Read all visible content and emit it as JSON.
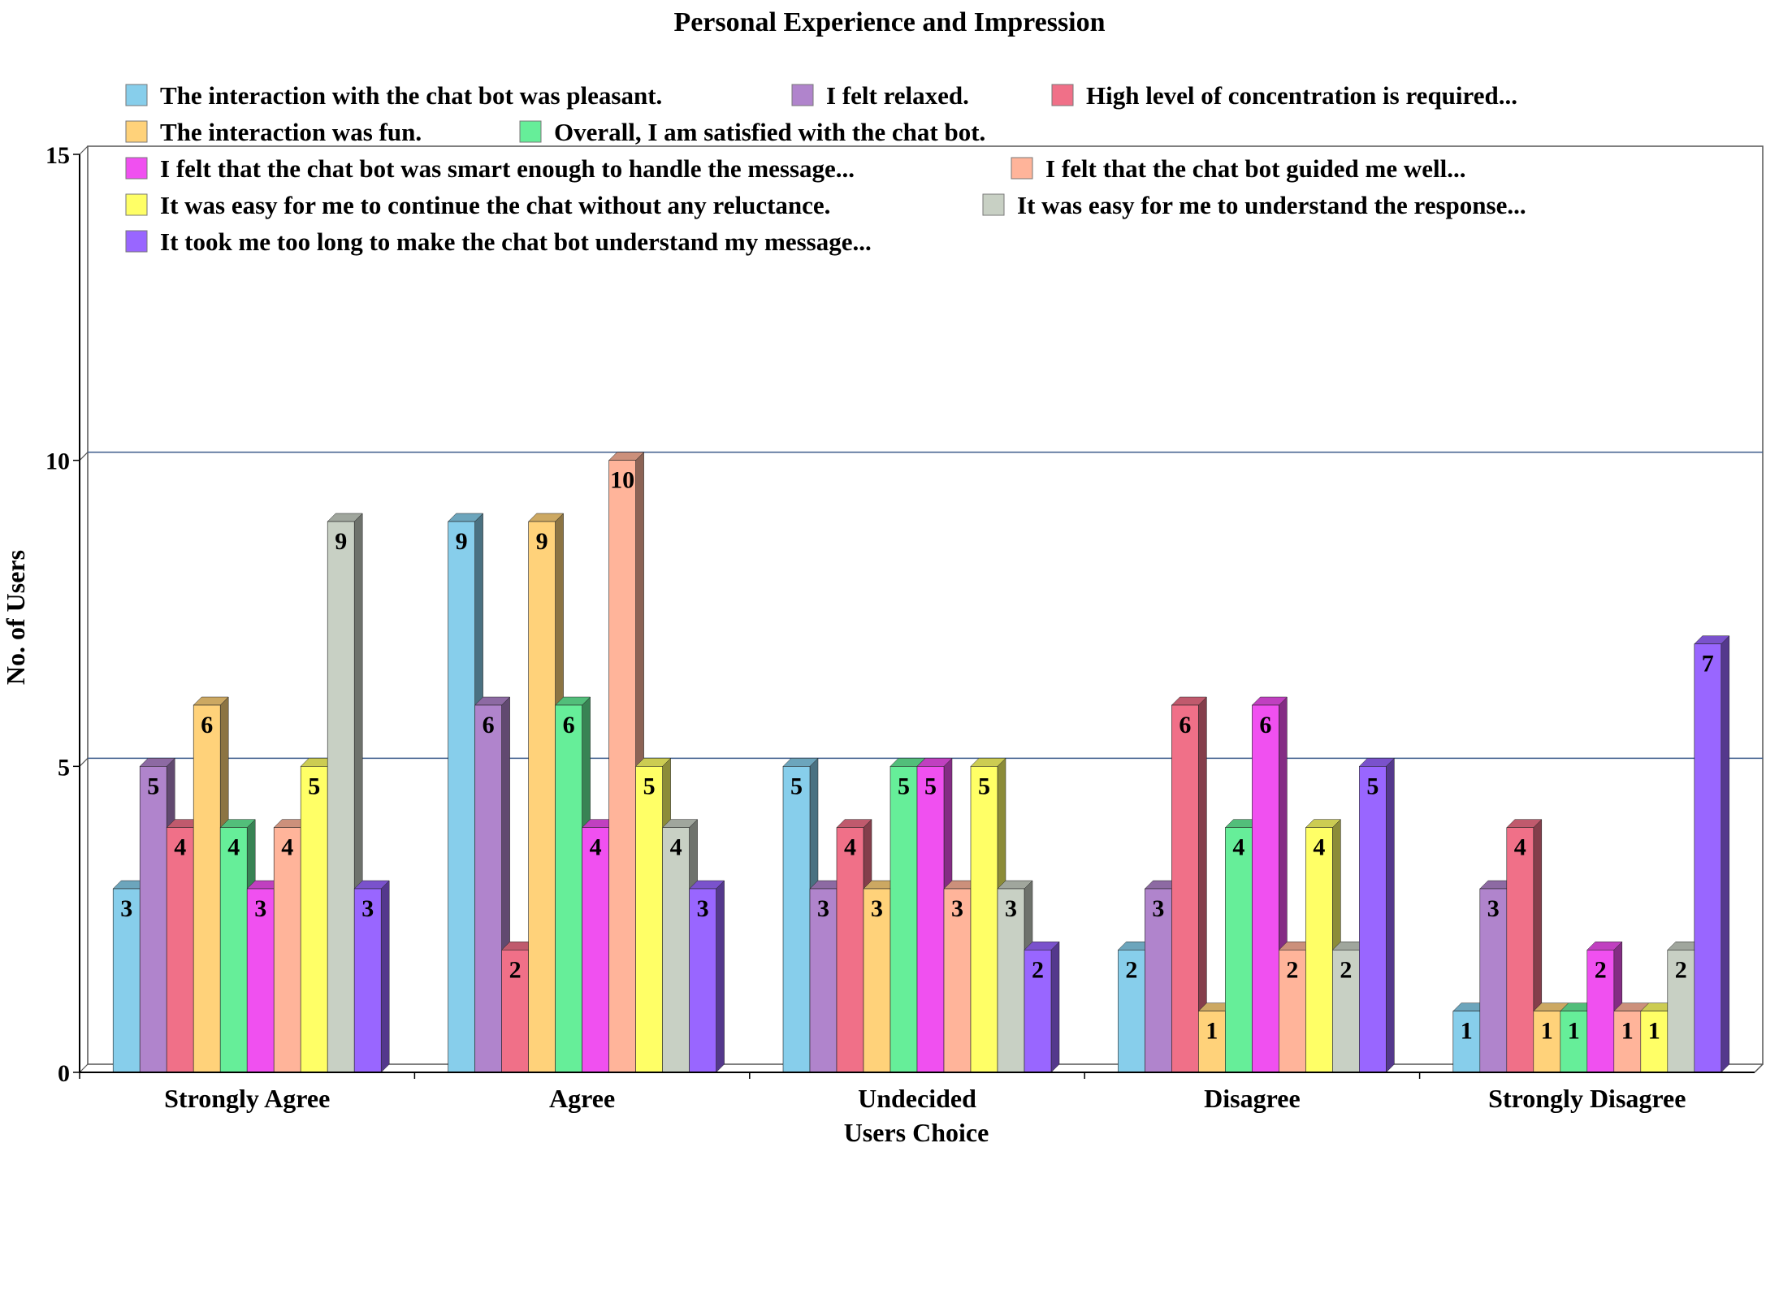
{
  "chart_data": {
    "type": "bar",
    "title": "Personal Experience and Impression",
    "xlabel": "Users Choice",
    "ylabel": "No. of  Users",
    "ylim": [
      0,
      15
    ],
    "yticks": [
      0,
      5,
      10,
      15
    ],
    "grid": true,
    "legend_position": "top-inside",
    "categories": [
      "Strongly Agree",
      "Agree",
      "Undecided",
      "Disagree",
      "Strongly Disagree"
    ],
    "series": [
      {
        "name": "The interaction with the chat bot was pleasant.",
        "color": "#87CEEB",
        "values": [
          3,
          9,
          5,
          2,
          1
        ]
      },
      {
        "name": "I felt relaxed.",
        "color": "#B084CC",
        "values": [
          5,
          6,
          3,
          3,
          3
        ]
      },
      {
        "name": "High level of concentration is required...",
        "color": "#F07088",
        "values": [
          4,
          2,
          4,
          6,
          4
        ]
      },
      {
        "name": "The interaction was fun.",
        "color": "#FFD27A",
        "values": [
          6,
          9,
          3,
          1,
          1
        ]
      },
      {
        "name": "Overall, I am satisfied with the chat bot.",
        "color": "#66EE99",
        "values": [
          4,
          6,
          5,
          4,
          1
        ]
      },
      {
        "name": "I felt that the chat bot was smart enough to handle the message...",
        "color": "#F050F0",
        "values": [
          3,
          4,
          5,
          6,
          2
        ]
      },
      {
        "name": "I felt that the chat bot guided me well...",
        "color": "#FFB49A",
        "values": [
          4,
          10,
          3,
          2,
          1
        ]
      },
      {
        "name": "It was easy for me to continue the chat without any reluctance.",
        "color": "#FFFF66",
        "values": [
          5,
          5,
          5,
          4,
          1
        ]
      },
      {
        "name": "It was easy for me to understand the response...",
        "color": "#C8D0C4",
        "values": [
          9,
          4,
          3,
          2,
          2
        ]
      },
      {
        "name": "It took me too long to make the chat bot understand my message...",
        "color": "#9966FF",
        "values": [
          3,
          3,
          2,
          5,
          7
        ]
      }
    ]
  }
}
